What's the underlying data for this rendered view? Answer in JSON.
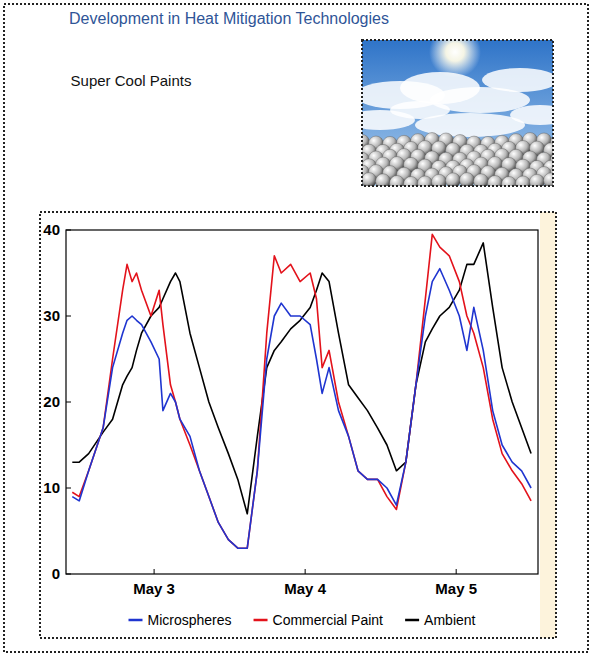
{
  "chart_data": {
    "type": "line",
    "title": "Development in Heat Mitigation Technologies",
    "subtitle": "Super Cool Paints",
    "x": [
      -1,
      0.1,
      1.6,
      3.9,
      5.4,
      7.0,
      7.7,
      8.5,
      9.2,
      10.0,
      11.5,
      12.8,
      13.4,
      14.6,
      15.4,
      16.1,
      17.7,
      19.2,
      20.7,
      22.2,
      23.8,
      25.3,
      26.8,
      28.4,
      29.9,
      31.1,
      32.2,
      33.7,
      35.2,
      36.8,
      37.8,
      38.7,
      39.8,
      41.3,
      42.9,
      44.4,
      45.9,
      47.5,
      49.0,
      50.5,
      52.0,
      53.6,
      55.1,
      56.2,
      57.4,
      58.9,
      60.5,
      61.7,
      62.8,
      64.3,
      65.8,
      67.3,
      68.9,
      70.4,
      71.9
    ],
    "series": [
      {
        "name": "Microspheres",
        "color": "#1f35d0",
        "values": [
          9,
          8.5,
          12,
          17,
          24,
          28,
          29.5,
          30,
          29.5,
          29,
          27,
          25,
          19,
          21,
          20,
          18,
          16,
          12,
          9,
          6,
          4,
          3,
          3,
          12,
          25,
          30,
          31.5,
          30,
          30,
          29,
          25,
          21,
          24,
          19,
          16,
          12,
          11,
          11,
          10,
          8,
          13,
          22,
          30,
          34,
          35.5,
          33,
          30,
          26,
          31,
          26,
          19,
          15,
          13,
          12,
          10
        ]
      },
      {
        "name": "Commercial Paint",
        "color": "#e3121b",
        "values": [
          9.5,
          9,
          12,
          17,
          25,
          33,
          36,
          34,
          35,
          33,
          30,
          33,
          29,
          22,
          20,
          18,
          15,
          12,
          9,
          6,
          4,
          3,
          3,
          12,
          28,
          37,
          35,
          36,
          34,
          35,
          32,
          24,
          26,
          20,
          16,
          12,
          11,
          11,
          9,
          7.5,
          13,
          22,
          32,
          39.5,
          38,
          37,
          34,
          30,
          28,
          24,
          18,
          14,
          12,
          10.5,
          8.5
        ]
      },
      {
        "name": "Ambient",
        "color": "#000000",
        "values": [
          13,
          13,
          14,
          16.5,
          18,
          22,
          23,
          24,
          26,
          28,
          30,
          31,
          32,
          34,
          35,
          34,
          28,
          24,
          20,
          17,
          14,
          11,
          7,
          16,
          24,
          26,
          27,
          28.5,
          29.5,
          31,
          33,
          35,
          34,
          28,
          22,
          20.5,
          19,
          17,
          15,
          12,
          13,
          22,
          27,
          28.5,
          30,
          31,
          33,
          36,
          36,
          38.5,
          31,
          24,
          20,
          17,
          14
        ]
      }
    ],
    "xlim": [
      -2,
      73
    ],
    "xticks": [
      {
        "value": 12,
        "label": "May 3"
      },
      {
        "value": 36,
        "label": "May 4"
      },
      {
        "value": 60,
        "label": "May 5"
      }
    ],
    "ylim": [
      0,
      40
    ],
    "yticks": [
      0,
      10,
      20,
      30,
      40
    ],
    "grid": false,
    "legend": "bottom"
  }
}
